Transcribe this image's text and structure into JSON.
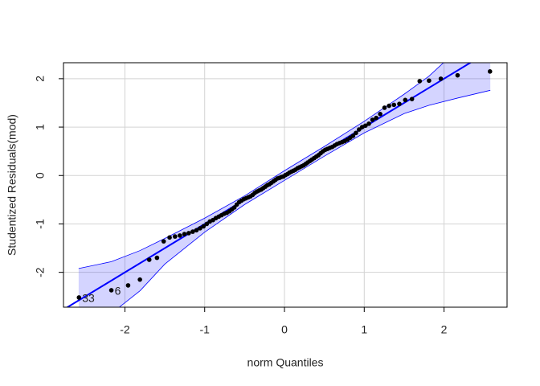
{
  "chart_data": {
    "type": "scatter",
    "xlabel": "norm Quantiles",
    "ylabel": "Studentized Residuals(mod)",
    "x": [
      -2.576,
      -2.17,
      -1.96,
      -1.812,
      -1.695,
      -1.598,
      -1.514,
      -1.44,
      -1.372,
      -1.311,
      -1.254,
      -1.2,
      -1.15,
      -1.103,
      -1.058,
      -1.015,
      -0.974,
      -0.935,
      -0.896,
      -0.86,
      -0.824,
      -0.789,
      -0.755,
      -0.722,
      -0.69,
      -0.659,
      -0.628,
      -0.598,
      -0.568,
      -0.539,
      -0.51,
      -0.482,
      -0.454,
      -0.426,
      -0.399,
      -0.372,
      -0.345,
      -0.319,
      -0.292,
      -0.266,
      -0.24,
      -0.215,
      -0.189,
      -0.164,
      -0.138,
      -0.113,
      -0.088,
      -0.063,
      -0.038,
      -0.013,
      0.013,
      0.038,
      0.063,
      0.088,
      0.113,
      0.138,
      0.164,
      0.189,
      0.215,
      0.24,
      0.266,
      0.292,
      0.319,
      0.345,
      0.372,
      0.399,
      0.426,
      0.454,
      0.482,
      0.51,
      0.539,
      0.568,
      0.598,
      0.628,
      0.659,
      0.69,
      0.722,
      0.755,
      0.789,
      0.824,
      0.86,
      0.896,
      0.935,
      0.974,
      1.015,
      1.058,
      1.103,
      1.15,
      1.2,
      1.254,
      1.311,
      1.372,
      1.44,
      1.514,
      1.598,
      1.695,
      1.812,
      1.96,
      2.17,
      2.576
    ],
    "values": [
      -2.52,
      -2.37,
      -2.27,
      -2.15,
      -1.74,
      -1.7,
      -1.36,
      -1.28,
      -1.26,
      -1.24,
      -1.21,
      -1.19,
      -1.16,
      -1.13,
      -1.09,
      -1.05,
      -1.0,
      -0.95,
      -0.92,
      -0.88,
      -0.85,
      -0.82,
      -0.79,
      -0.77,
      -0.74,
      -0.7,
      -0.66,
      -0.6,
      -0.55,
      -0.52,
      -0.49,
      -0.47,
      -0.45,
      -0.43,
      -0.4,
      -0.36,
      -0.33,
      -0.31,
      -0.29,
      -0.26,
      -0.23,
      -0.2,
      -0.18,
      -0.15,
      -0.12,
      -0.09,
      -0.06,
      -0.05,
      -0.03,
      -0.02,
      0.01,
      0.03,
      0.06,
      0.08,
      0.1,
      0.12,
      0.15,
      0.17,
      0.19,
      0.21,
      0.24,
      0.27,
      0.3,
      0.33,
      0.36,
      0.39,
      0.42,
      0.46,
      0.5,
      0.53,
      0.55,
      0.57,
      0.59,
      0.62,
      0.65,
      0.67,
      0.69,
      0.71,
      0.74,
      0.78,
      0.82,
      0.88,
      0.95,
      1.0,
      1.03,
      1.07,
      1.15,
      1.19,
      1.27,
      1.4,
      1.44,
      1.46,
      1.48,
      1.56,
      1.58,
      1.95,
      1.96,
      2.0,
      2.07,
      2.15
    ],
    "point_labels": [
      {
        "index": 0,
        "label": "33"
      },
      {
        "index": 1,
        "label": "6"
      }
    ],
    "color": "#000000",
    "reference_line": {
      "intercept": 0,
      "slope": 1,
      "color": "#0000ff"
    },
    "envelope": {
      "x": [
        -2.58,
        -2.17,
        -1.81,
        -1.5,
        -1.0,
        -0.5,
        0,
        0.5,
        1.0,
        1.5,
        1.81,
        2.17,
        2.58
      ],
      "upper": [
        -1.92,
        -1.78,
        -1.55,
        -1.3,
        -0.88,
        -0.42,
        0.1,
        0.6,
        1.12,
        1.68,
        2.05,
        2.6,
        3.3
      ],
      "lower": [
        -3.3,
        -2.85,
        -2.38,
        -1.83,
        -1.17,
        -0.6,
        -0.1,
        0.4,
        0.88,
        1.28,
        1.45,
        1.6,
        1.76
      ],
      "color": "#0000ff"
    },
    "xlim": [
      -2.77,
      2.79
    ],
    "ylim": [
      -2.72,
      2.33
    ],
    "xticks": [
      -2,
      -1,
      0,
      1,
      2
    ],
    "yticks": [
      -2,
      -1,
      0,
      1,
      2
    ],
    "grid": true
  }
}
